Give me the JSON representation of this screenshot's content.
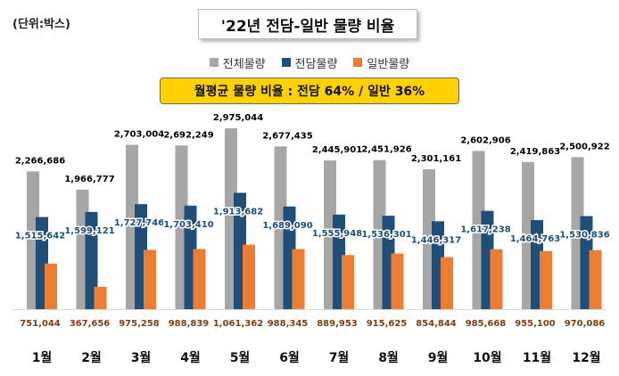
{
  "unit_label": "(단위:박스)",
  "title": "'22년 전담-일반 물량 비율",
  "banner": "월평균 물량 비율 : 전담 64% / 일반 36%",
  "colors": {
    "total": "#a6a6a6",
    "dedicated": "#1f4e79",
    "general": "#ed7d31",
    "total_label": "#000000",
    "dedicated_label": "#1f4e79",
    "general_label": "#843c0c"
  },
  "chart_data": {
    "type": "bar",
    "title": "'22년 전담-일반 물량 비율",
    "xlabel": "",
    "ylabel": "",
    "ylim": [
      0,
      3000000
    ],
    "legend_position": "top-center",
    "grid": false,
    "categories": [
      "1월",
      "2월",
      "3월",
      "4월",
      "5월",
      "6월",
      "7월",
      "8월",
      "9월",
      "10월",
      "11월",
      "12월"
    ],
    "series": [
      {
        "name": "전체물량",
        "values": [
          2266686,
          1966777,
          2703004,
          2692249,
          2975044,
          2677435,
          2445901,
          2451926,
          2301161,
          2602906,
          2419863,
          2500922
        ],
        "labels": [
          "2,266,686",
          "1,966,777",
          "2,703,004",
          "2,692,249",
          "2,975,044",
          "2,677,435",
          "2,445,901",
          "2,451,926",
          "2,301,161",
          "2,602,906",
          "2,419,863",
          "2,500,922"
        ]
      },
      {
        "name": "전담물량",
        "values": [
          1515642,
          1599121,
          1727746,
          1703410,
          1913682,
          1689090,
          1555948,
          1536301,
          1446317,
          1617238,
          1464763,
          1530836
        ],
        "labels": [
          "1,515,642",
          "1,599,121",
          "1,727,746",
          "1,703,410",
          "1,913,682",
          "1,689,090",
          "1,555,948",
          "1,536,301",
          "1,446,317",
          "1,617,238",
          "1,464,763",
          "1,530,836"
        ]
      },
      {
        "name": "일반물량",
        "values": [
          751044,
          367656,
          975258,
          988839,
          1061362,
          988345,
          889953,
          915625,
          854844,
          985668,
          955100,
          970086
        ],
        "labels": [
          "751,044",
          "367,656",
          "975,258",
          "988,839",
          "1,061,362",
          "988,345",
          "889,953",
          "915,625",
          "854,844",
          "985,668",
          "955,100",
          "970,086"
        ]
      }
    ]
  }
}
